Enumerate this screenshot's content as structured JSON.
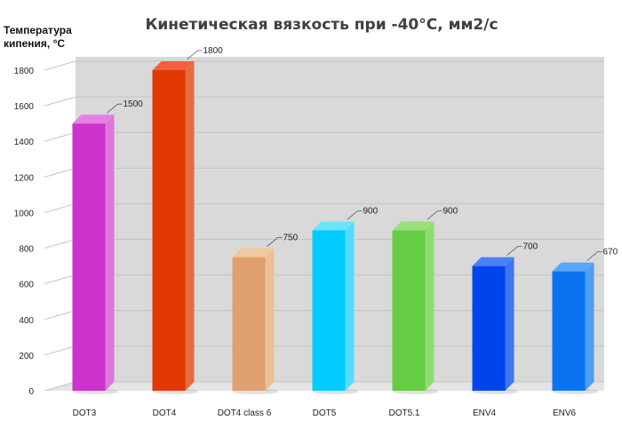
{
  "chart_data": {
    "type": "bar",
    "title": "Кинетическая вязкость при -40°С, мм2/с",
    "ylabel_lines": [
      "Температура",
      "кипения, °С"
    ],
    "xlabel": "",
    "categories": [
      "DOT3",
      "DOT4",
      "DOT4 class 6",
      "DOT5",
      "DOT5.1",
      "ENV4",
      "ENV6"
    ],
    "values": [
      1500,
      1800,
      750,
      900,
      900,
      700,
      670
    ],
    "data_labels": [
      "1500",
      "1800",
      "750",
      "900",
      "900",
      "700",
      "670"
    ],
    "yticks": [
      0,
      200,
      400,
      600,
      800,
      1000,
      1200,
      1400,
      1600,
      1800
    ],
    "ytick_labels": [
      "0",
      "200",
      "400",
      "600",
      "800",
      "1000",
      "1200",
      "1400",
      "1600",
      "1800"
    ],
    "ylim": [
      0,
      1800
    ],
    "grid": true,
    "legend": "none",
    "colors": [
      "#cc33cc",
      "#e03800",
      "#e0a070",
      "#00ccff",
      "#66cc44",
      "#0044ee",
      "#0a74f0"
    ],
    "side_colors": [
      "#dd77dd",
      "#e86a3e",
      "#ecbf98",
      "#55ddff",
      "#8fdc70",
      "#3f75f2",
      "#4d9cf5"
    ],
    "top_colors": [
      "#e680e6",
      "#f06040",
      "#efc8a0",
      "#66e6ff",
      "#99e07a",
      "#4d7ef5",
      "#5aa5f7"
    ],
    "wall_color": "#d9d9d9",
    "grid_color": "#c4c4c4"
  }
}
